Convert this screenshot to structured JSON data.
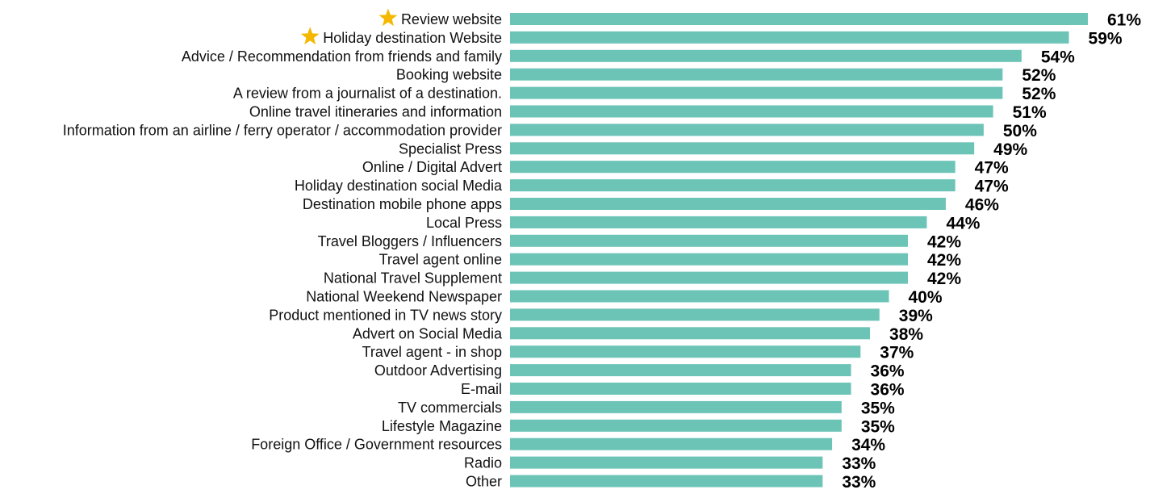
{
  "colors": {
    "bar": "#6cc4b7",
    "star": "#f5b800",
    "label": "#111111",
    "value": "#000000",
    "background": "#ffffff"
  },
  "chart_data": {
    "type": "bar",
    "orientation": "horizontal",
    "value_suffix": "%",
    "title": "",
    "xlabel": "",
    "ylabel": "",
    "xlim": [
      0,
      61
    ],
    "grid": false,
    "legend": "none",
    "highlight_icon": "star-icon",
    "categories": [
      "Review website",
      "Holiday destination  Website",
      "Advice / Recommendation from friends and family",
      "Booking website",
      "A review from a journalist of a destination.",
      "Online travel itineraries and information",
      "Information from an airline / ferry operator / accommodation provider",
      "Specialist Press",
      "Online / Digital Advert",
      "Holiday destination social Media",
      "Destination mobile phone apps",
      "Local Press",
      "Travel Bloggers / Influencers",
      "Travel agent online",
      "National Travel Supplement",
      "National Weekend Newspaper",
      "Product mentioned in TV news story",
      "Advert on Social Media",
      "Travel agent - in shop",
      "Outdoor Advertising",
      "E-mail",
      "TV commercials",
      "Lifestyle Magazine",
      "Foreign Office / Government resources",
      "Radio",
      "Other"
    ],
    "values": [
      61,
      59,
      54,
      52,
      52,
      51,
      50,
      49,
      47,
      47,
      46,
      44,
      42,
      42,
      42,
      40,
      39,
      38,
      37,
      36,
      36,
      35,
      35,
      34,
      33,
      33
    ],
    "value_labels": [
      "61%",
      "59%",
      "54%",
      "52%",
      "52%",
      "51%",
      "50%",
      "49%",
      "47%",
      "47%",
      "46%",
      "44%",
      "42%",
      "42%",
      "42%",
      "40%",
      "39%",
      "38%",
      "37%",
      "36%",
      "36%",
      "35%",
      "35%",
      "34%",
      "33%",
      "33%"
    ],
    "highlighted": [
      true,
      true,
      false,
      false,
      false,
      false,
      false,
      false,
      false,
      false,
      false,
      false,
      false,
      false,
      false,
      false,
      false,
      false,
      false,
      false,
      false,
      false,
      false,
      false,
      false,
      false
    ]
  }
}
